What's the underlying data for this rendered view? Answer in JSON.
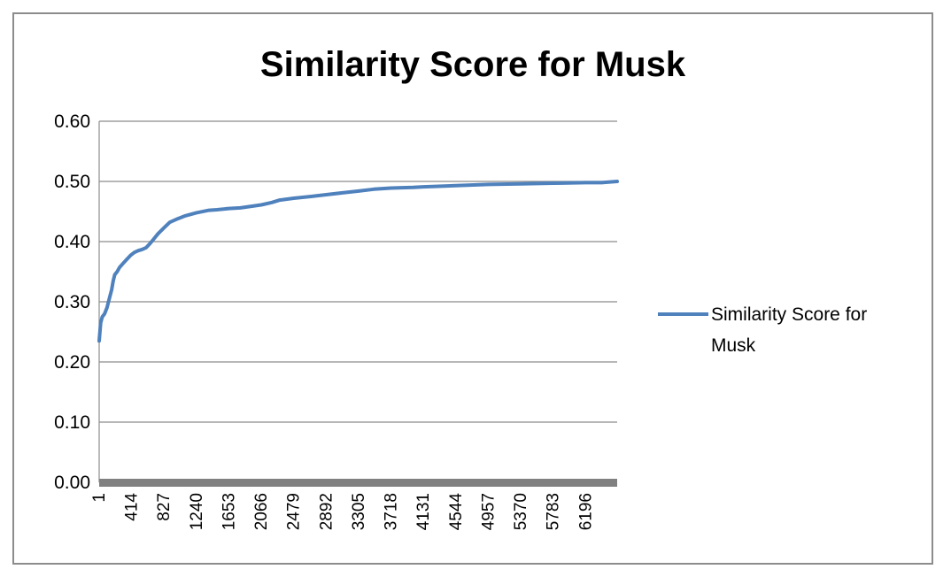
{
  "chart_data": {
    "type": "line",
    "title": "Similarity Score for Musk",
    "xlabel": "",
    "ylabel": "",
    "ylim": [
      0,
      0.6
    ],
    "y_ticks": [
      "0.00",
      "0.10",
      "0.20",
      "0.30",
      "0.40",
      "0.50",
      "0.60"
    ],
    "x_ticks": [
      "1",
      "414",
      "827",
      "1240",
      "1653",
      "2066",
      "2479",
      "2892",
      "3305",
      "3718",
      "4131",
      "4544",
      "4957",
      "5370",
      "5783",
      "6196"
    ],
    "xlim": [
      1,
      6598
    ],
    "grid": "horizontal",
    "legend_position": "right",
    "series": [
      {
        "name": "Similarity Score for Musk",
        "color": "#4f81bd",
        "x": [
          1,
          20,
          40,
          70,
          100,
          130,
          160,
          180,
          200,
          230,
          260,
          300,
          350,
          400,
          450,
          500,
          550,
          600,
          650,
          700,
          750,
          827,
          900,
          1000,
          1100,
          1240,
          1400,
          1500,
          1653,
          1800,
          2066,
          2200,
          2300,
          2479,
          2700,
          2892,
          3100,
          3305,
          3500,
          3718,
          4000,
          4131,
          4544,
          4957,
          5370,
          5783,
          6196,
          6400,
          6598
        ],
        "y": [
          0.235,
          0.265,
          0.275,
          0.28,
          0.29,
          0.305,
          0.32,
          0.335,
          0.345,
          0.35,
          0.357,
          0.363,
          0.37,
          0.377,
          0.382,
          0.385,
          0.387,
          0.39,
          0.397,
          0.405,
          0.413,
          0.423,
          0.432,
          0.438,
          0.443,
          0.448,
          0.452,
          0.453,
          0.455,
          0.456,
          0.461,
          0.465,
          0.469,
          0.472,
          0.475,
          0.478,
          0.481,
          0.484,
          0.487,
          0.489,
          0.49,
          0.491,
          0.493,
          0.495,
          0.496,
          0.497,
          0.498,
          0.498,
          0.5
        ]
      }
    ]
  }
}
